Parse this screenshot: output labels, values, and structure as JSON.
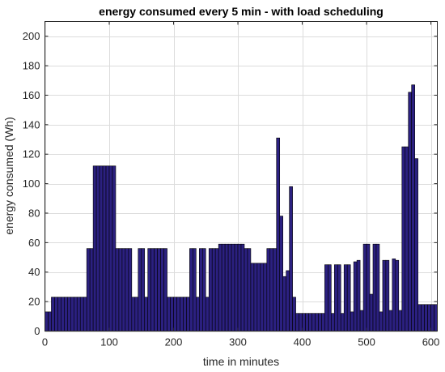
{
  "chart_data": {
    "type": "bar",
    "title": "energy consumed every 5 min - with load scheduling",
    "xlabel": "time in minutes",
    "ylabel": "energy consumed (Wh)",
    "xlim": [
      0,
      610
    ],
    "ylim": [
      0,
      210
    ],
    "xticks": [
      0,
      100,
      200,
      300,
      400,
      500,
      600
    ],
    "yticks": [
      0,
      20,
      40,
      60,
      80,
      100,
      120,
      140,
      160,
      180,
      200
    ],
    "grid": true,
    "bar_width_minutes": 5,
    "bar_color": "#2b2080",
    "bar_edge_color": "#000000",
    "x": [
      0,
      5,
      10,
      15,
      20,
      25,
      30,
      35,
      40,
      45,
      50,
      55,
      60,
      65,
      70,
      75,
      80,
      85,
      90,
      95,
      100,
      105,
      110,
      115,
      120,
      125,
      130,
      135,
      140,
      145,
      150,
      155,
      160,
      165,
      170,
      175,
      180,
      185,
      190,
      195,
      200,
      205,
      210,
      215,
      220,
      225,
      230,
      235,
      240,
      245,
      250,
      255,
      260,
      265,
      270,
      275,
      280,
      285,
      290,
      295,
      300,
      305,
      310,
      315,
      320,
      325,
      330,
      335,
      340,
      345,
      350,
      355,
      360,
      365,
      370,
      375,
      380,
      385,
      390,
      395,
      400,
      405,
      410,
      415,
      420,
      425,
      430,
      435,
      440,
      445,
      450,
      455,
      460,
      465,
      470,
      475,
      480,
      485,
      490,
      495,
      500,
      505,
      510,
      515,
      520,
      525,
      530,
      535,
      540,
      545,
      550,
      555,
      560,
      565,
      570,
      575,
      580,
      585,
      590,
      595,
      600,
      605
    ],
    "values": [
      13,
      13,
      23,
      23,
      23,
      23,
      23,
      23,
      23,
      23,
      23,
      23,
      23,
      56,
      56,
      112,
      112,
      112,
      112,
      112,
      112,
      112,
      56,
      56,
      56,
      56,
      56,
      23,
      23,
      56,
      56,
      23,
      56,
      56,
      56,
      56,
      56,
      56,
      23,
      23,
      23,
      23,
      23,
      23,
      23,
      56,
      56,
      23,
      56,
      56,
      23,
      56,
      56,
      56,
      59,
      59,
      59,
      59,
      59,
      59,
      59,
      59,
      56,
      56,
      46,
      46,
      46,
      46,
      46,
      56,
      56,
      56,
      131,
      78,
      37,
      41,
      98,
      23,
      12,
      12,
      12,
      12,
      12,
      12,
      12,
      12,
      12,
      45,
      45,
      12,
      45,
      45,
      12,
      45,
      45,
      13,
      47,
      48,
      14,
      59,
      59,
      25,
      59,
      59,
      13,
      48,
      48,
      14,
      49,
      48,
      14,
      125,
      125,
      162,
      167,
      117,
      18,
      18,
      18,
      18,
      18,
      18
    ]
  }
}
